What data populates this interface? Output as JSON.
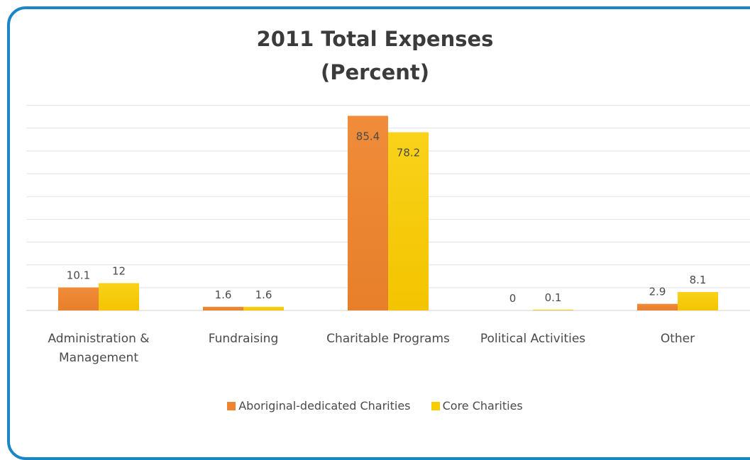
{
  "colors": {
    "frame": "#1a86c8",
    "grid": "#e2e2e2",
    "series1": "#ee8330",
    "series2": "#f7cd00"
  },
  "chart_data": {
    "type": "bar",
    "title": "2011 Total Expenses",
    "subtitle": "(Percent)",
    "categories": [
      "Administration & Management",
      "Fundraising",
      "Charitable Programs",
      "Political Activities",
      "Other"
    ],
    "category_lines": [
      [
        "Administration &",
        "Management"
      ],
      [
        "Fundraising"
      ],
      [
        "Charitable Programs"
      ],
      [
        "Political Activities"
      ],
      [
        "Other"
      ]
    ],
    "series": [
      {
        "name": "Aboriginal-dedicated Charities",
        "values": [
          10.1,
          1.6,
          85.4,
          0,
          2.9
        ],
        "labels": [
          "10.1",
          "1.6",
          "85.4",
          "0",
          "2.9"
        ]
      },
      {
        "name": "Core Charities",
        "values": [
          12,
          1.6,
          78.2,
          0.1,
          8.1
        ],
        "labels": [
          "12",
          "1.6",
          "78.2",
          "0.1",
          "8.1"
        ]
      }
    ],
    "ylim": [
      0,
      90
    ],
    "grid": true,
    "legend_position": "bottom"
  }
}
